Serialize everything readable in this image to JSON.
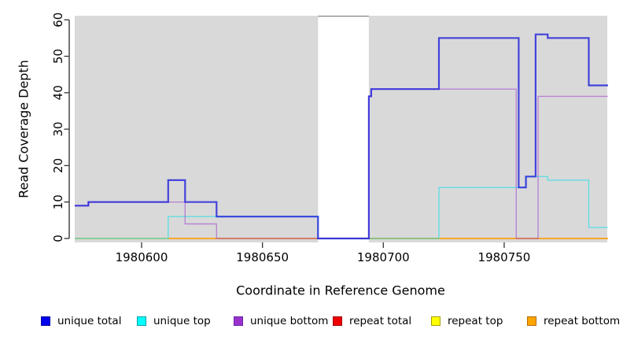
{
  "chart_data": {
    "type": "line",
    "step": "after",
    "title": "",
    "xlabel": "Coordinate in Reference Genome",
    "ylabel": "Read Coverage Depth",
    "xlim": [
      1980572,
      1980793
    ],
    "ylim": [
      0,
      61
    ],
    "x_tick_values": [
      1980600,
      1980650,
      1980700,
      1980750
    ],
    "x_tick_labels": [
      "1980600",
      "1980650",
      "1980700",
      "1980750"
    ],
    "y_tick_values": [
      0,
      10,
      20,
      30,
      40,
      50,
      60
    ],
    "y_tick_labels": [
      "0",
      "10",
      "20",
      "30",
      "40",
      "50",
      "60"
    ],
    "grid": "off",
    "plot_background": "#d9d9d9",
    "highlight_band": {
      "x_start": 1980673,
      "x_end": 1980694,
      "y_top": 61,
      "fill": "#ffffff",
      "border_color": "#8c8c8c"
    },
    "x_end": 1980793,
    "series": [
      {
        "name": "repeat total",
        "color": "#dd0000",
        "opacity": 0.6,
        "width": 1.2,
        "points": [
          [
            1980572,
            0
          ]
        ]
      },
      {
        "name": "repeat top",
        "color": "#ffee00",
        "opacity": 0.6,
        "width": 1.4,
        "points": [
          [
            1980572,
            0
          ]
        ]
      },
      {
        "name": "repeat bottom",
        "color": "#ff9500",
        "opacity": 0.8,
        "width": 1.6,
        "points": [
          [
            1980611,
            0
          ]
        ]
      },
      {
        "name": "unique top",
        "color": "#00e0ee",
        "opacity": 0.55,
        "width": 1.4,
        "points": [
          [
            1980572,
            0
          ],
          [
            1980611,
            6
          ],
          [
            1980673,
            0
          ],
          [
            1980723,
            14
          ],
          [
            1980759,
            17
          ],
          [
            1980768,
            16
          ],
          [
            1980785,
            3
          ]
        ]
      },
      {
        "name": "unique bottom",
        "color": "#9932cc",
        "opacity": 0.5,
        "width": 1.4,
        "points": [
          [
            1980572,
            9
          ],
          [
            1980578,
            10
          ],
          [
            1980618,
            4
          ],
          [
            1980631,
            0
          ],
          [
            1980694,
            39
          ],
          [
            1980695,
            41
          ],
          [
            1980755,
            0
          ],
          [
            1980764,
            39
          ]
        ]
      },
      {
        "name": "unique total",
        "color": "#2222dd",
        "opacity": 0.82,
        "width": 2.2,
        "points": [
          [
            1980572,
            9
          ],
          [
            1980578,
            10
          ],
          [
            1980611,
            16
          ],
          [
            1980618,
            10
          ],
          [
            1980631,
            6
          ],
          [
            1980673,
            0
          ],
          [
            1980694,
            39
          ],
          [
            1980695,
            41
          ],
          [
            1980723,
            55
          ],
          [
            1980756,
            14
          ],
          [
            1980759,
            17
          ],
          [
            1980763,
            56
          ],
          [
            1980768,
            55
          ],
          [
            1980785,
            42
          ]
        ]
      }
    ],
    "legend_position": "bottom"
  },
  "legend": {
    "items": [
      {
        "label": "unique total",
        "color": "#0000ee",
        "border": "#0000a0"
      },
      {
        "label": "unique top",
        "color": "#00ffff",
        "border": "#00a0a8"
      },
      {
        "label": "unique bottom",
        "color": "#9932cc",
        "border": "#6b21a8"
      },
      {
        "label": "repeat total",
        "color": "#ee0000",
        "border": "#a00000"
      },
      {
        "label": "repeat top",
        "color": "#ffff00",
        "border": "#a8a000"
      },
      {
        "label": "repeat bottom",
        "color": "#ffa500",
        "border": "#b36b00"
      }
    ]
  },
  "axis_style": {
    "tick_color": "#333333",
    "label_color": "#000000",
    "axis_line_color": "#2a2a2a"
  }
}
